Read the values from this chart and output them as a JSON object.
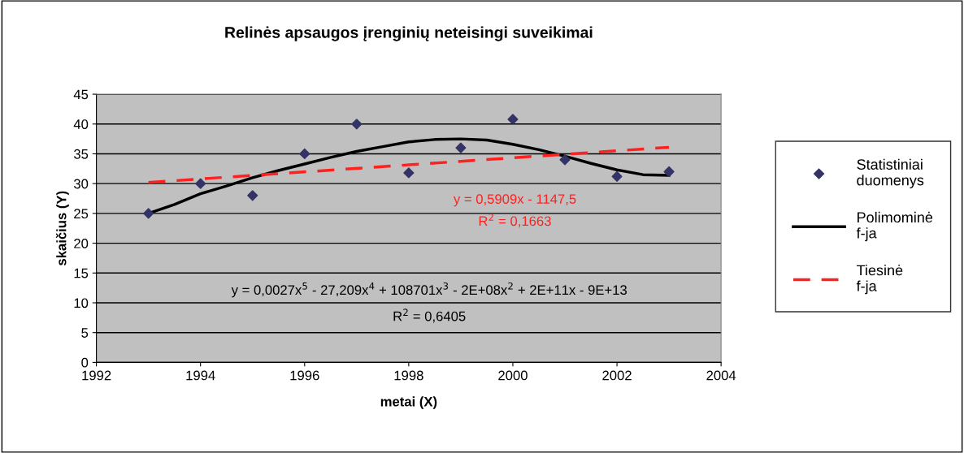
{
  "chart_data": {
    "type": "scatter",
    "title": "Relinės apsaugos įrenginių neteisingi suveikimai",
    "xlabel": "metai (X)",
    "ylabel": "skaičius (Y)",
    "series": [
      {
        "name": "Statistiniai duomenys",
        "color": "#333366",
        "marker": "diamond",
        "x": [
          1993,
          1994,
          1995,
          1996,
          1997,
          1998,
          1999,
          2000,
          2001,
          2002,
          2003
        ],
        "values": [
          25,
          30,
          28,
          35,
          40,
          31.8,
          36,
          40.8,
          34,
          31.2,
          32
        ]
      },
      {
        "name": "Polimominė f-ja",
        "type": "line",
        "color": "#000000",
        "line_style": "solid",
        "x": [
          1993,
          1993.5,
          1994,
          1994.5,
          1995,
          1995.5,
          1996,
          1996.5,
          1997,
          1997.5,
          1998,
          1998.5,
          1999,
          1999.5,
          2000,
          2000.5,
          2001,
          2001.5,
          2002,
          2002.5,
          2003
        ],
        "values": [
          25,
          26.5,
          28.3,
          29.6,
          31,
          32.2,
          33.3,
          34.4,
          35.4,
          36.2,
          37,
          37.4,
          37.5,
          37.3,
          36.6,
          35.7,
          34.6,
          33.4,
          32.3,
          31.5,
          31.4
        ]
      },
      {
        "name": "Tiesinė f-ja",
        "type": "line",
        "color": "#ff2020",
        "line_style": "dashed",
        "x": [
          1993,
          2003
        ],
        "values": [
          30.2,
          36.1
        ]
      }
    ],
    "annotations": [
      "y = 0,5909x - 1147,5",
      "R$^{2}$ = 0,1663",
      "y = 0,0027x$^{5}$ - 27,209x$^{4}$ + 108701x$^{3}$ - 2E+08x$^{2}$ + 2E+11x - 9E+13",
      "R$^{2}$ = 0,6405"
    ],
    "xlim": [
      1992,
      2004
    ],
    "xticks": [
      1992,
      1994,
      1996,
      1998,
      2000,
      2002,
      2004
    ],
    "ylim": [
      0,
      45
    ],
    "yticks": [
      0,
      5,
      10,
      15,
      20,
      25,
      30,
      35,
      40,
      45
    ],
    "grid": "y",
    "legend": "right"
  }
}
